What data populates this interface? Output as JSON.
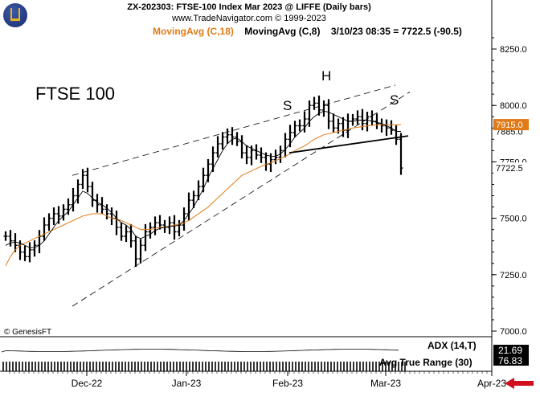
{
  "header": {
    "line1": "ZX-202303:  FTSE-100 Index Mar 2023 @ LIFFE  (Daily bars)",
    "line2": "www.TradeNavigator.com © 1999-2023"
  },
  "legend": {
    "ma18": "MovingAvg (C,18)",
    "ma8": "MovingAvg (C,8)",
    "quote": "3/10/23 08:35 = 7722.5 (-90.5)"
  },
  "copyright": "© GenesisFT",
  "indicators": {
    "adx_label": "ADX (14,T)",
    "atr_label": "Avg True Range (30)",
    "adx_value": "21.69",
    "atr_value": "76.83"
  },
  "colors": {
    "ma18": "#e07b18",
    "ma8": "#000000",
    "bars": "#000000",
    "ma18_tag_bg": "#e07b18",
    "nav_arrow": "#d0101a"
  },
  "chart_data": {
    "type": "ohlc",
    "title": "FTSE 100",
    "annotations": [
      "S",
      "H",
      "S"
    ],
    "y_ticks": [
      "8250.0",
      "8000.0",
      "7750.0",
      "7500.0",
      "7250.0",
      "7000.0"
    ],
    "x_ticks": [
      "Dec-22",
      "Jan-23",
      "Feb-23",
      "Mar-23",
      "Apr-23"
    ],
    "ylim": [
      6940,
      8380
    ],
    "tags": {
      "last": "7722.5",
      "ma18": "7915.0",
      "ma8": "7885.0"
    },
    "grid": false,
    "bars_close": [
      7420,
      7400,
      7380,
      7350,
      7330,
      7360,
      7380,
      7420,
      7470,
      7500,
      7520,
      7510,
      7540,
      7560,
      7600,
      7650,
      7690,
      7640,
      7580,
      7560,
      7540,
      7520,
      7500,
      7460,
      7420,
      7440,
      7400,
      7320,
      7380,
      7440,
      7460,
      7480,
      7470,
      7460,
      7480,
      7440,
      7470,
      7520,
      7580,
      7600,
      7640,
      7690,
      7740,
      7790,
      7830,
      7860,
      7870,
      7860,
      7840,
      7790,
      7770,
      7800,
      7780,
      7770,
      7740,
      7760,
      7770,
      7800,
      7850,
      7880,
      7910,
      7910,
      7940,
      8000,
      8010,
      7980,
      8000,
      7930,
      7900,
      7920,
      7890,
      7930,
      7940,
      7950,
      7920,
      7950,
      7930,
      7920,
      7910,
      7900,
      7890,
      7850,
      7722.5
    ],
    "ma18_values": [
      7290,
      7330,
      7360,
      7380,
      7390,
      7400,
      7410,
      7420,
      7430,
      7440,
      7450,
      7460,
      7470,
      7480,
      7490,
      7500,
      7510,
      7515,
      7520,
      7520,
      7520,
      7510,
      7500,
      7495,
      7490,
      7480,
      7470,
      7460,
      7450,
      7450,
      7450,
      7455,
      7460,
      7460,
      7465,
      7470,
      7475,
      7480,
      7490,
      7505,
      7520,
      7535,
      7550,
      7570,
      7590,
      7610,
      7630,
      7650,
      7670,
      7690,
      7700,
      7710,
      7720,
      7730,
      7740,
      7745,
      7755,
      7765,
      7775,
      7785,
      7800,
      7810,
      7820,
      7835,
      7850,
      7860,
      7870,
      7875,
      7880,
      7885,
      7890,
      7895,
      7900,
      7903,
      7906,
      7909,
      7912,
      7914,
      7915,
      7915,
      7915,
      7915,
      7915
    ],
    "ma8_values": [
      7380,
      7390,
      7395,
      7390,
      7380,
      7370,
      7370,
      7380,
      7400,
      7430,
      7460,
      7490,
      7510,
      7530,
      7560,
      7590,
      7620,
      7610,
      7590,
      7570,
      7560,
      7545,
      7525,
      7500,
      7480,
      7470,
      7450,
      7420,
      7410,
      7420,
      7430,
      7445,
      7455,
      7460,
      7465,
      7465,
      7470,
      7490,
      7520,
      7550,
      7590,
      7630,
      7680,
      7720,
      7760,
      7800,
      7830,
      7850,
      7855,
      7840,
      7820,
      7810,
      7800,
      7790,
      7780,
      7775,
      7775,
      7785,
      7805,
      7830,
      7860,
      7880,
      7900,
      7930,
      7950,
      7965,
      7975,
      7970,
      7960,
      7950,
      7940,
      7930,
      7930,
      7935,
      7935,
      7935,
      7930,
      7925,
      7920,
      7910,
      7900,
      7885,
      7885
    ]
  }
}
